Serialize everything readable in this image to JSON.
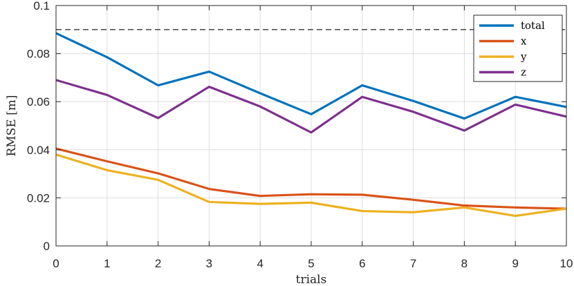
{
  "chart_data": {
    "type": "line",
    "title": "",
    "xlabel": "trials",
    "ylabel": "RMSE [m]",
    "xlim": [
      0,
      10
    ],
    "ylim": [
      0,
      0.1
    ],
    "xticks": [
      "0",
      "1",
      "2",
      "3",
      "4",
      "5",
      "6",
      "7",
      "8",
      "9",
      "10"
    ],
    "yticks": [
      "0",
      "0.02",
      "0.04",
      "0.06",
      "0.08",
      "0.1"
    ],
    "grid": true,
    "legend_position": "top-right",
    "x": [
      0,
      1,
      2,
      3,
      4,
      5,
      6,
      7,
      8,
      9,
      10
    ],
    "series": [
      {
        "name": "total",
        "color": "#0072BD",
        "values": [
          0.0885,
          0.0785,
          0.0668,
          0.0725,
          0.0635,
          0.0548,
          0.0668,
          0.0603,
          0.053,
          0.062,
          0.0578
        ]
      },
      {
        "name": "x",
        "color": "#D95319",
        "values": [
          0.0405,
          0.0352,
          0.0302,
          0.0237,
          0.0208,
          0.0215,
          0.0213,
          0.0192,
          0.0168,
          0.016,
          0.0155
        ]
      },
      {
        "name": "y",
        "color": "#EDB120",
        "values": [
          0.038,
          0.0315,
          0.0275,
          0.0183,
          0.0175,
          0.018,
          0.0145,
          0.014,
          0.016,
          0.0125,
          0.0155
        ]
      },
      {
        "name": "z",
        "color": "#7E2F8E",
        "values": [
          0.069,
          0.0628,
          0.0532,
          0.0662,
          0.058,
          0.0472,
          0.062,
          0.0558,
          0.048,
          0.0588,
          0.0538
        ]
      }
    ],
    "reference_line": {
      "y": 0.09,
      "style": "dashed",
      "color": "#333333"
    }
  }
}
